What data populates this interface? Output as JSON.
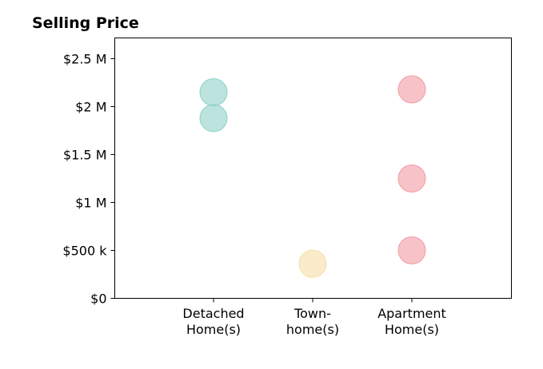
{
  "chart_data": {
    "type": "scatter",
    "title": "Selling Price",
    "xlabel": "",
    "ylabel": "",
    "categories": [
      [
        "Detached",
        "Home(s)"
      ],
      [
        "Town-",
        "home(s)"
      ],
      [
        "Apartment",
        "Home(s)"
      ]
    ],
    "ylim": [
      0,
      2500000
    ],
    "yticks": [
      {
        "value": 0,
        "label": "$0"
      },
      {
        "value": 500000,
        "label": "$500 k"
      },
      {
        "value": 1000000,
        "label": "$1 M"
      },
      {
        "value": 1500000,
        "label": "$1.5 M"
      },
      {
        "value": 2000000,
        "label": "$2 M"
      },
      {
        "value": 2500000,
        "label": "$2.5 M"
      }
    ],
    "grid": false,
    "series": [
      {
        "category": 0,
        "color": "#8fd1c8",
        "values": [
          2150000,
          1880000
        ]
      },
      {
        "category": 1,
        "color": "#f7dea6",
        "values": [
          360000
        ]
      },
      {
        "category": 2,
        "color": "#f29ba3",
        "values": [
          2180000,
          1250000,
          500000
        ]
      }
    ]
  }
}
